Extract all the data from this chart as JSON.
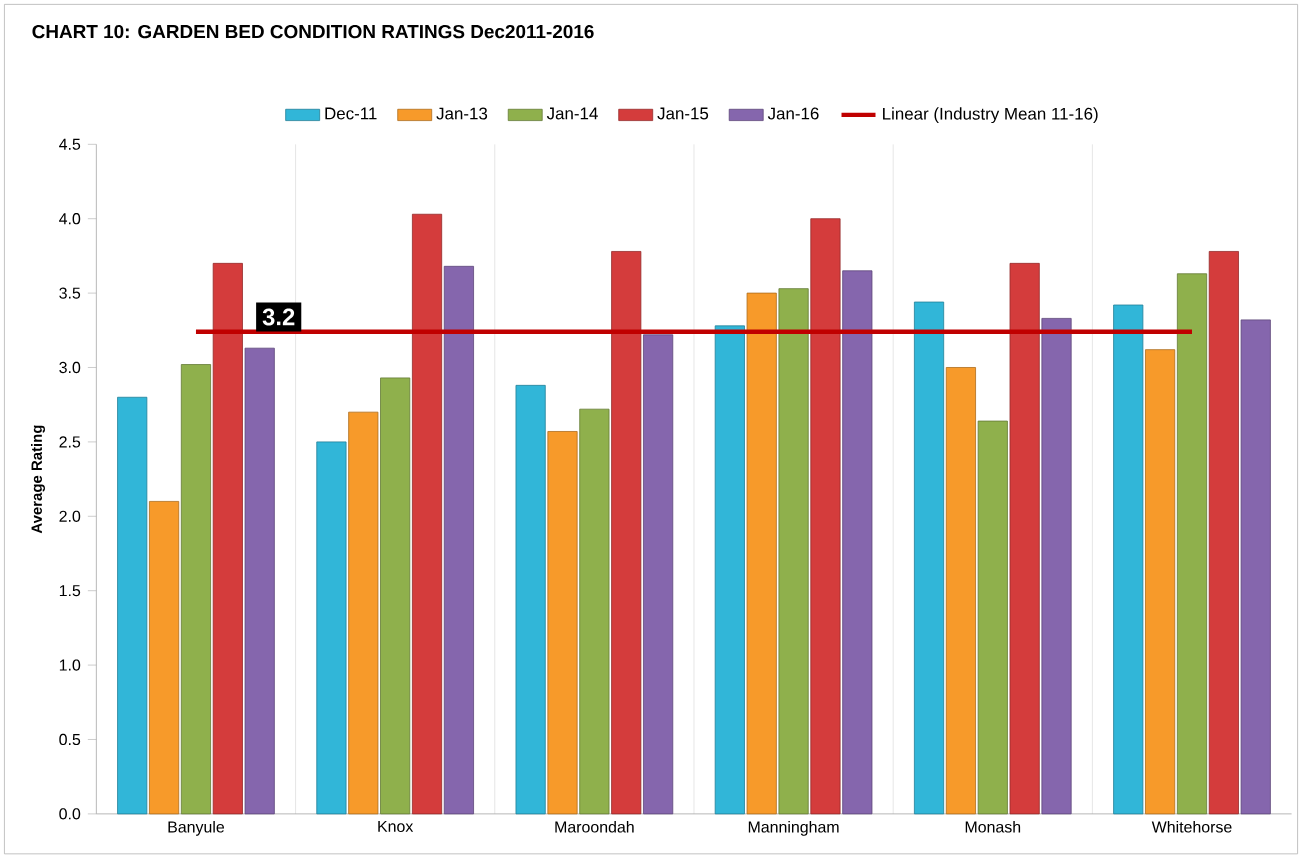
{
  "chart_data": {
    "type": "bar",
    "title": "CHART 10: GARDEN BED CONDITION RATINGS  Dec2011-2016",
    "ylabel": "Average Rating",
    "categories": [
      "Banyule",
      "Knox",
      "Maroondah",
      "Manningham",
      "Monash",
      "Whitehorse"
    ],
    "series": [
      {
        "name": "Dec-11",
        "color": "#31b6d8",
        "values": [
          2.8,
          2.5,
          2.88,
          3.28,
          3.44,
          3.42
        ]
      },
      {
        "name": "Jan-13",
        "color": "#f79a2a",
        "values": [
          2.1,
          2.7,
          2.57,
          3.5,
          3.0,
          3.12
        ]
      },
      {
        "name": "Jan-14",
        "color": "#8fb04c",
        "values": [
          3.02,
          2.93,
          2.72,
          3.53,
          2.64,
          3.63
        ]
      },
      {
        "name": "Jan-15",
        "color": "#d43c3c",
        "values": [
          3.7,
          4.03,
          3.78,
          4.0,
          3.7,
          3.78
        ]
      },
      {
        "name": "Jan-16",
        "color": "#8566ad",
        "values": [
          3.13,
          3.68,
          3.22,
          3.65,
          3.33,
          3.32
        ]
      },
      {
        "name": "Linear (Industry Mean 11-16)",
        "type": "line",
        "color": "#c00000",
        "values": [
          3.24,
          3.24,
          3.24,
          3.24,
          3.24,
          3.24
        ]
      }
    ],
    "annotations": [
      "3.2"
    ],
    "ylim": [
      0,
      4.5
    ],
    "yticks": [
      {
        "value": 0,
        "label": "0.0"
      },
      {
        "value": 0.5,
        "label": "0.5"
      },
      {
        "value": 1,
        "label": "1.0"
      },
      {
        "value": 1.5,
        "label": "1.5"
      },
      {
        "value": 2,
        "label": "2.0"
      },
      {
        "value": 2.5,
        "label": "2.5"
      },
      {
        "value": 3,
        "label": "3.0"
      },
      {
        "value": 3.5,
        "label": "3.5"
      },
      {
        "value": 4,
        "label": "4.0"
      },
      {
        "value": 4.5,
        "label": "4.5"
      }
    ],
    "grid": "x",
    "legend": "top"
  }
}
